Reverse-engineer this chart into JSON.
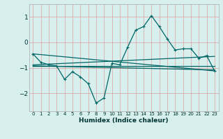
{
  "xlabel": "Humidex (Indice chaleur)",
  "bg_color": "#d7efed",
  "line_color": "#006666",
  "grid_color": "#c8e8e5",
  "xlim": [
    -0.5,
    23.5
  ],
  "ylim": [
    -2.7,
    1.5
  ],
  "yticks": [
    -2,
    -1,
    0,
    1
  ],
  "xticks": [
    0,
    1,
    2,
    3,
    4,
    5,
    6,
    7,
    8,
    9,
    10,
    11,
    12,
    13,
    14,
    15,
    16,
    17,
    18,
    19,
    20,
    21,
    22,
    23
  ],
  "series1": {
    "x": [
      0,
      1,
      2,
      3,
      4,
      5,
      6,
      7,
      8,
      9,
      10,
      11,
      12,
      13,
      14,
      15,
      16,
      17,
      18,
      19,
      20,
      21,
      22,
      23
    ],
    "y": [
      -0.45,
      -0.78,
      -0.88,
      -0.92,
      -1.45,
      -1.15,
      -1.35,
      -1.62,
      -2.38,
      -2.18,
      -0.82,
      -0.88,
      -0.18,
      0.48,
      0.62,
      1.05,
      0.62,
      0.14,
      -0.3,
      -0.25,
      -0.25,
      -0.62,
      -0.52,
      -1.12
    ]
  },
  "line2": {
    "x": [
      0,
      23
    ],
    "y": [
      -0.45,
      -1.12
    ]
  },
  "line3": {
    "x": [
      0,
      23
    ],
    "y": [
      -0.88,
      -0.55
    ]
  },
  "line4": {
    "x": [
      0,
      23
    ],
    "y": [
      -0.92,
      -0.92
    ]
  },
  "line5": {
    "x": [
      0,
      23
    ],
    "y": [
      -0.92,
      -1.08
    ]
  }
}
